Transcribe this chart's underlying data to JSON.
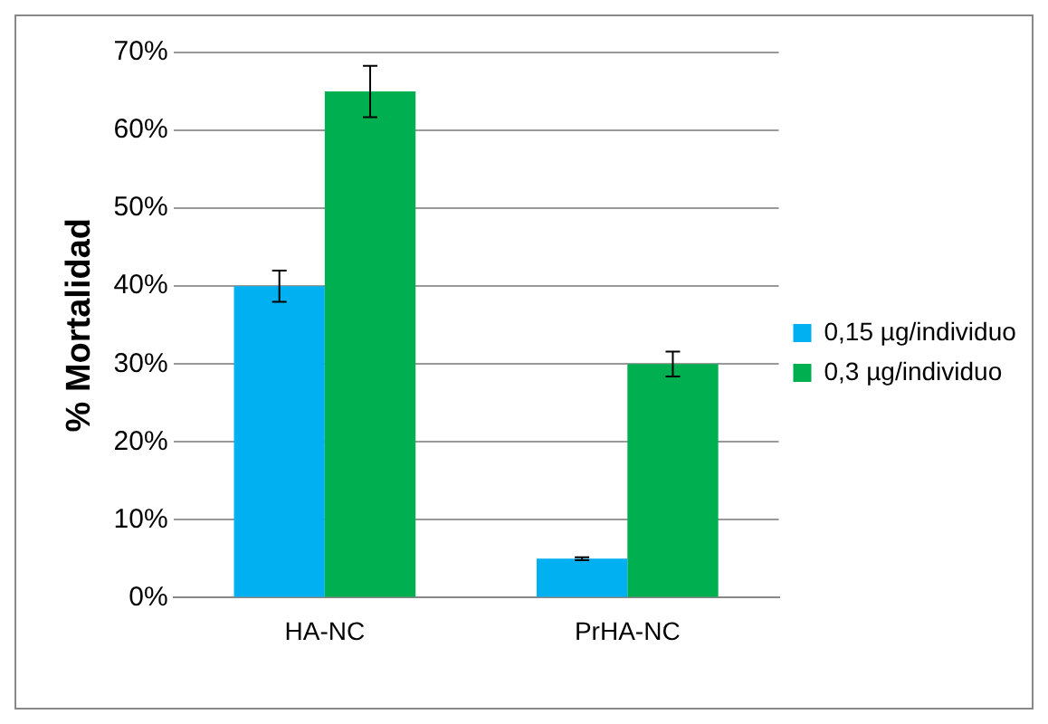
{
  "chart_data": {
    "type": "bar",
    "ylabel": "% Mortalidad",
    "categories": [
      "HA-NC",
      "PrHA-NC"
    ],
    "series": [
      {
        "name": "0,15 µg/individuo",
        "color": "#00b0f0",
        "values": [
          40,
          5
        ],
        "errors": [
          2,
          0.2
        ]
      },
      {
        "name": "0,3 µg/individuo",
        "color": "#00b050",
        "values": [
          65,
          30
        ],
        "errors": [
          3.3,
          1.6
        ]
      }
    ],
    "ylim": [
      0,
      70
    ],
    "yticks": [
      {
        "value": 0,
        "label": "0%"
      },
      {
        "value": 10,
        "label": "10%"
      },
      {
        "value": 20,
        "label": "20%"
      },
      {
        "value": 30,
        "label": "30%"
      },
      {
        "value": 40,
        "label": "40%"
      },
      {
        "value": 50,
        "label": "50%"
      },
      {
        "value": 60,
        "label": "60%"
      },
      {
        "value": 70,
        "label": "70%"
      }
    ],
    "grid": "y",
    "legend": "right"
  }
}
